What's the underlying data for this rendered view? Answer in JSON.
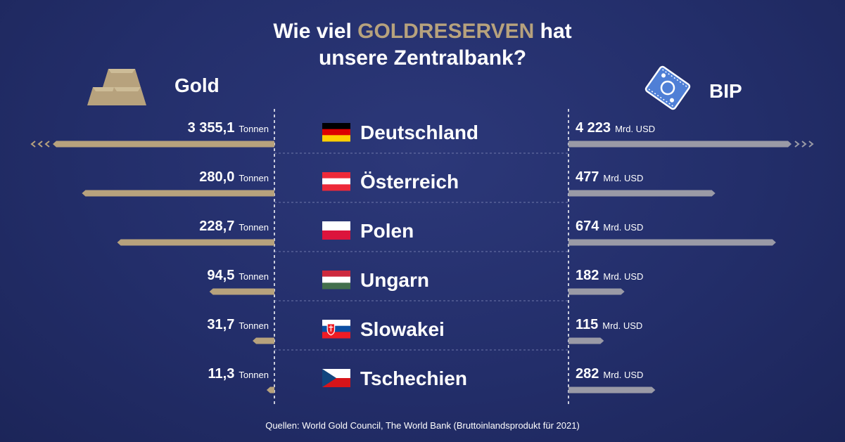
{
  "title": {
    "part1": "Wie viel ",
    "highlight": "GOLDRESERVEN",
    "part2": " hat",
    "line2": "unsere Zentralbank?"
  },
  "gold_label": "Gold",
  "bip_label": "BIP",
  "icons": {
    "gold": "gold-bars-icon",
    "money": "banknote-icon"
  },
  "colors": {
    "gold_bar": "#b7a27d",
    "bip_bar": "#9a9aa6",
    "background": "#232e6a",
    "highlight": "#b7a27d"
  },
  "source": "Quellen: World Gold Council, The World Bank (Bruttoinlandsprodukt für 2021)",
  "chart_data": {
    "type": "bar",
    "categories": [
      "Deutschland",
      "Österreich",
      "Polen",
      "Ungarn",
      "Slowakei",
      "Tschechien"
    ],
    "series": [
      {
        "name": "Gold",
        "unit": "Tonnen",
        "values": [
          3355.1,
          280.0,
          228.7,
          94.5,
          31.7,
          11.3
        ],
        "labels": [
          "3 355,1",
          "280,0",
          "228,7",
          "94,5",
          "31,7",
          "11,3"
        ]
      },
      {
        "name": "BIP",
        "unit": "Mrd. USD",
        "values": [
          4223,
          477,
          674,
          182,
          115,
          282
        ],
        "labels": [
          "4 223",
          "477",
          "674",
          "182",
          "115",
          "282"
        ]
      }
    ],
    "title": "Wie viel GOLDRESERVEN hat unsere Zentralbank?",
    "truncated_first_bar": true,
    "flags": [
      "de",
      "at",
      "pl",
      "hu",
      "sk",
      "cz"
    ]
  }
}
